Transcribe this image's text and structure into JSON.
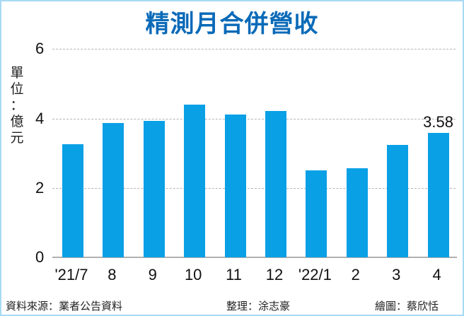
{
  "title": "精測月合併營收",
  "unit_label": [
    "單",
    "位",
    "：",
    "億",
    "元"
  ],
  "footer": {
    "source": "資料來源：業者公告資料",
    "editor": "整理：涂志豪",
    "illustrator": "繪圖：蔡欣恬"
  },
  "colors": {
    "bar": "#0aa0e6",
    "title": "#0a6ab8",
    "border": "#a8daf3"
  },
  "chart_data": {
    "type": "bar",
    "title": "精測月合併營收",
    "xlabel": "",
    "ylabel": "單位：億元",
    "categories": [
      "'21/7",
      "8",
      "9",
      "10",
      "11",
      "12",
      "'22/1",
      "2",
      "3",
      "4"
    ],
    "values": [
      3.25,
      3.86,
      3.94,
      4.39,
      4.11,
      4.21,
      2.5,
      2.56,
      3.23,
      3.58
    ],
    "yticks": [
      "0",
      "2",
      "4",
      "6"
    ],
    "ylim": [
      0,
      6
    ],
    "grid": true,
    "annotations": [
      {
        "category": "4",
        "text": "3.58"
      }
    ],
    "legend": null
  }
}
